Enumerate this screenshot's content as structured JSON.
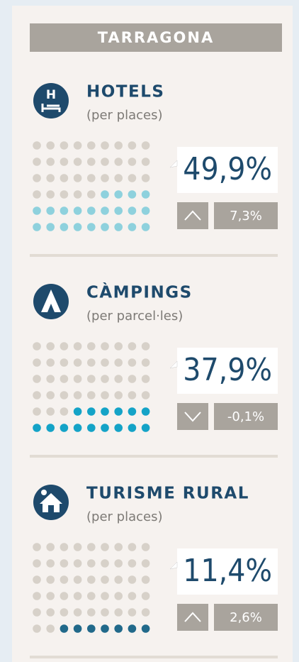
{
  "header": {
    "title": "TARRAGONA"
  },
  "grid": {
    "columns": 9,
    "rows": 6
  },
  "sections": [
    {
      "title": "HOTELS",
      "subtitle": "(per places)",
      "share": "49,9%",
      "trend": "up",
      "change": "7,3%",
      "filled_dots": 22,
      "color": "#8ed1dd"
    },
    {
      "title": "CÀMPINGS",
      "subtitle": "(per parcel·les)",
      "share": "37,9%",
      "trend": "down",
      "change": "-0,1%",
      "filled_dots": 15,
      "color": "#14a3c7"
    },
    {
      "title": "TURISME RURAL",
      "subtitle": "(per places)",
      "share": "11,4%",
      "trend": "up",
      "change": "2,6%",
      "filled_dots": 7,
      "color": "#21698a"
    }
  ]
}
